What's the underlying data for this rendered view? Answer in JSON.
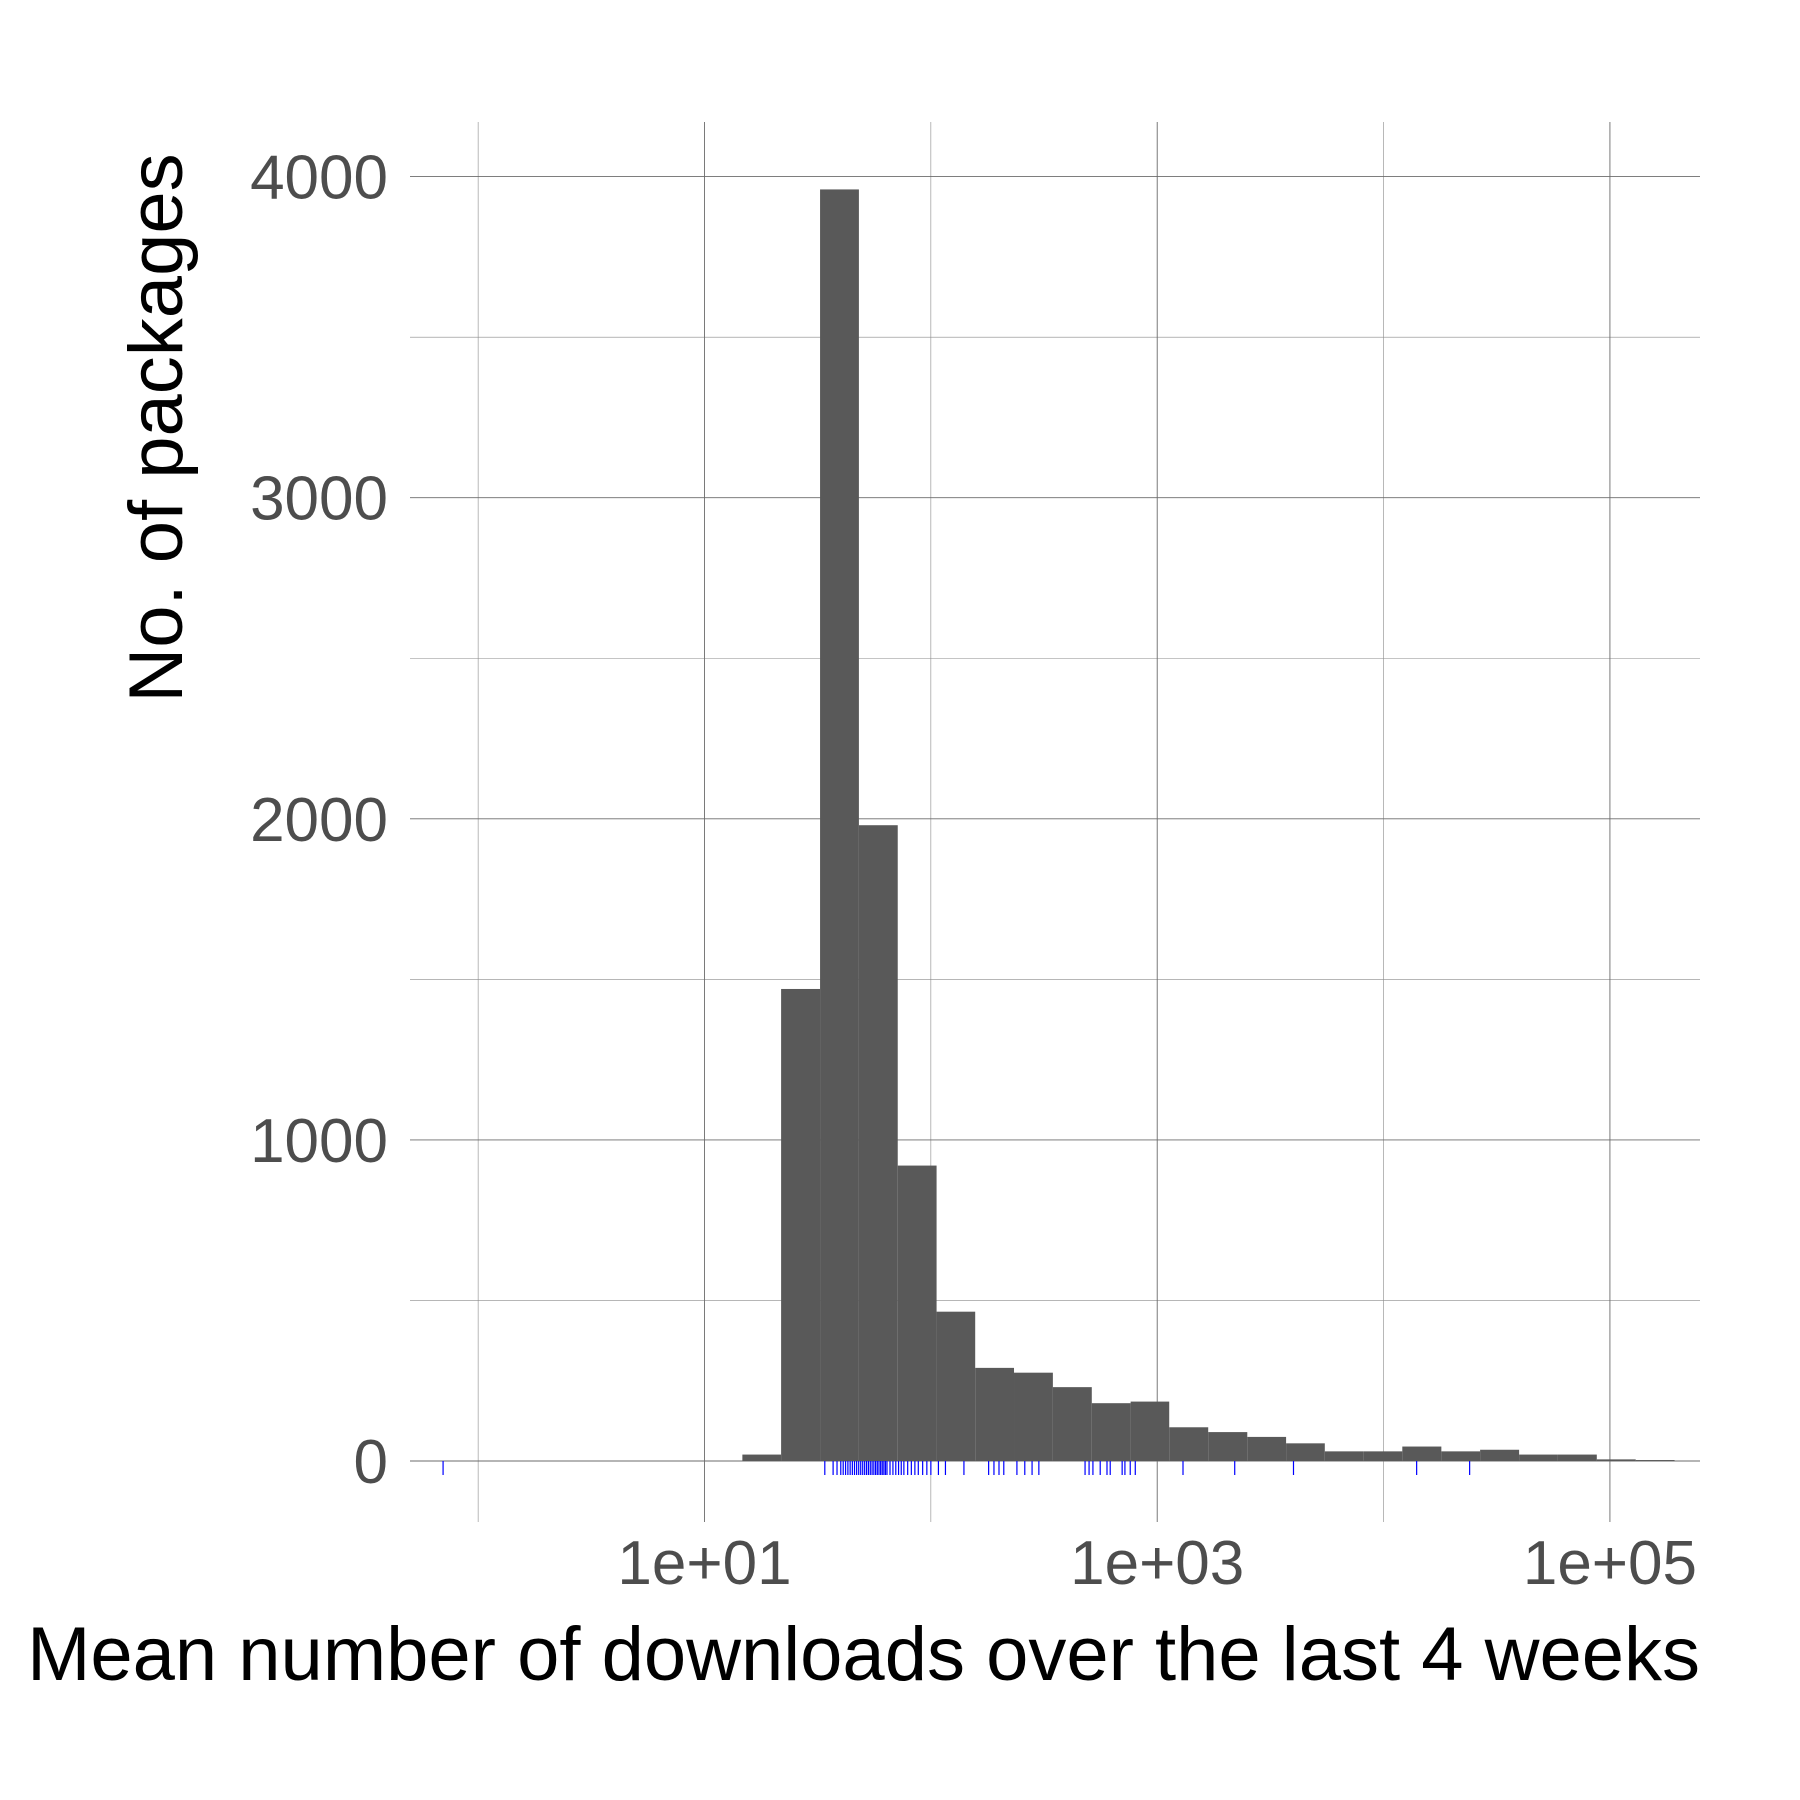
{
  "chart_data": {
    "type": "bar",
    "title": "",
    "xlabel": "Mean number of downloads over the last 4 weeks",
    "ylabel": "No. of packages",
    "x_scale": "log10",
    "xlim": [
      0.5,
      250000
    ],
    "ylim": [
      -190,
      4170
    ],
    "x_ticks": [
      {
        "value": 10,
        "label": "1e+01"
      },
      {
        "value": 1000,
        "label": "1e+03"
      },
      {
        "value": 100000,
        "label": "1e+05"
      }
    ],
    "x_minor_ticks": [
      1,
      100,
      10000
    ],
    "y_ticks": [
      {
        "value": 0,
        "label": "0"
      },
      {
        "value": 1000,
        "label": "1000"
      },
      {
        "value": 2000,
        "label": "2000"
      },
      {
        "value": 3000,
        "label": "3000"
      },
      {
        "value": 4000,
        "label": "4000"
      }
    ],
    "y_minor_ticks": [
      500,
      1500,
      2500,
      3500
    ],
    "grid": true,
    "bar_color": "#595959",
    "rug_color": "#0000ff",
    "bins": [
      {
        "x0": 14.7,
        "x1": 21.8,
        "count": 20
      },
      {
        "x0": 21.8,
        "x1": 32.4,
        "count": 1470
      },
      {
        "x0": 32.4,
        "x1": 48.1,
        "count": 3960
      },
      {
        "x0": 48.1,
        "x1": 71.4,
        "count": 1980
      },
      {
        "x0": 71.4,
        "x1": 106,
        "count": 920
      },
      {
        "x0": 106,
        "x1": 157,
        "count": 465
      },
      {
        "x0": 157,
        "x1": 233,
        "count": 290
      },
      {
        "x0": 233,
        "x1": 346,
        "count": 275
      },
      {
        "x0": 346,
        "x1": 514,
        "count": 230
      },
      {
        "x0": 514,
        "x1": 763,
        "count": 180
      },
      {
        "x0": 763,
        "x1": 1130,
        "count": 185
      },
      {
        "x0": 1130,
        "x1": 1680,
        "count": 105
      },
      {
        "x0": 1680,
        "x1": 2500,
        "count": 90
      },
      {
        "x0": 2500,
        "x1": 3710,
        "count": 75
      },
      {
        "x0": 3710,
        "x1": 5500,
        "count": 55
      },
      {
        "x0": 5500,
        "x1": 8170,
        "count": 30
      },
      {
        "x0": 8170,
        "x1": 12100,
        "count": 30
      },
      {
        "x0": 12100,
        "x1": 18000,
        "count": 45
      },
      {
        "x0": 18000,
        "x1": 26700,
        "count": 30
      },
      {
        "x0": 26700,
        "x1": 39700,
        "count": 35
      },
      {
        "x0": 39700,
        "x1": 58900,
        "count": 20
      },
      {
        "x0": 58900,
        "x1": 87500,
        "count": 20
      },
      {
        "x0": 87500,
        "x1": 130000,
        "count": 5
      },
      {
        "x0": 130000,
        "x1": 193000,
        "count": 3
      }
    ],
    "rug": [
      0.7,
      34,
      37,
      38.5,
      40,
      41,
      42,
      43,
      44,
      45,
      46,
      47,
      48,
      49,
      50,
      51,
      52,
      53,
      54,
      55,
      56,
      57,
      58,
      59,
      60,
      61,
      62,
      63,
      64,
      66,
      68,
      70,
      72,
      74,
      76,
      79,
      82,
      85,
      88,
      92,
      96,
      100,
      108,
      116,
      140,
      180,
      190,
      200,
      210,
      240,
      260,
      280,
      300,
      480,
      500,
      520,
      560,
      600,
      620,
      700,
      720,
      760,
      800,
      1300,
      2200,
      4000,
      14000,
      24000
    ]
  }
}
